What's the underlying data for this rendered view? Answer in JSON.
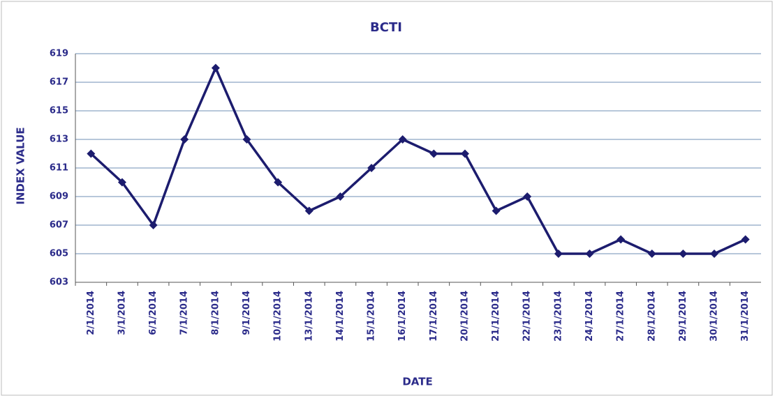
{
  "chart_data": {
    "type": "line",
    "title": "BCTI",
    "x_label": "DATE",
    "y_label": "INDEX VALUE",
    "categories": [
      "2/1/2014",
      "3/1/2014",
      "6/1/2014",
      "7/1/2014",
      "8/1/2014",
      "9/1/2014",
      "10/1/2014",
      "13/1/2014",
      "14/1/2014",
      "15/1/2014",
      "16/1/2014",
      "17/1/2014",
      "20/1/2014",
      "21/1/2014",
      "22/1/2014",
      "23/1/2014",
      "24/1/2014",
      "27/1/2014",
      "28/1/2014",
      "29/1/2014",
      "30/1/2014",
      "31/1/2014"
    ],
    "values": [
      612,
      610,
      607,
      613,
      618,
      613,
      610,
      608,
      609,
      611,
      613,
      612,
      612,
      608,
      609,
      605,
      605,
      606,
      605,
      605,
      605,
      606
    ],
    "color": "#1c1c6e",
    "ylim": [
      603,
      619
    ],
    "yticks": [
      603,
      605,
      607,
      609,
      611,
      613,
      615,
      617,
      619
    ],
    "grid": true
  }
}
